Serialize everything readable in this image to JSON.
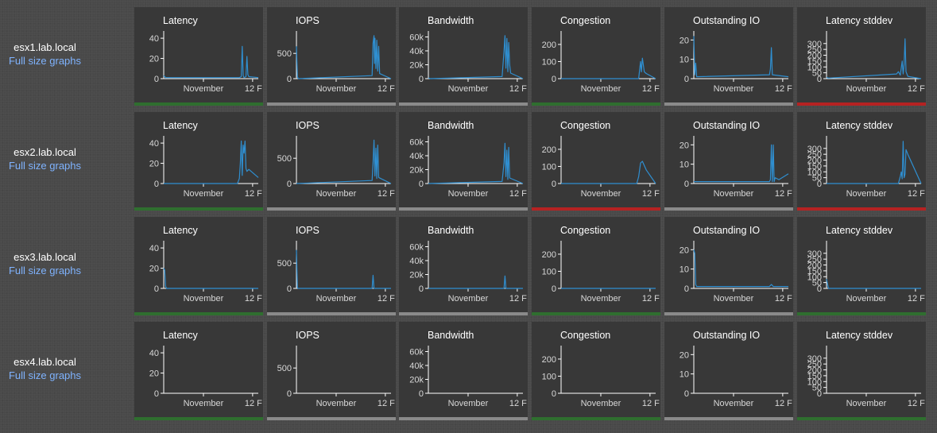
{
  "colors": {
    "line": "#2f8fd1",
    "axis": "#ffffff",
    "status_ok": "#2f6e2f",
    "status_warn": "#8a8a8a",
    "status_crit": "#b52222"
  },
  "axis_templates": {
    "Latency": {
      "ticks": [
        0,
        20,
        40
      ],
      "tick_labels": [
        "0",
        "20",
        "40"
      ],
      "ymax": 44
    },
    "IOPS": {
      "ticks": [
        0,
        500
      ],
      "tick_labels": [
        "0",
        "500"
      ],
      "ymax": 880
    },
    "Bandwidth": {
      "ticks": [
        0,
        20000,
        40000,
        60000
      ],
      "tick_labels": [
        "0",
        "20k",
        "40k",
        "60k"
      ],
      "ymax": 64000
    },
    "Congestion": {
      "ticks": [
        0,
        100,
        200
      ],
      "tick_labels": [
        "0",
        "100",
        "200"
      ],
      "ymax": 260
    },
    "Outstanding IO": {
      "ticks": [
        0,
        10,
        20
      ],
      "tick_labels": [
        "0",
        "10",
        "20"
      ],
      "ymax": 23
    },
    "Latency stddev": {
      "ticks": [
        0,
        50,
        100,
        150,
        200,
        250,
        300
      ],
      "tick_labels": [
        "0",
        "50",
        "100",
        "150",
        "200",
        "250",
        "300"
      ],
      "ymax": 380
    }
  },
  "x_axis": {
    "tick_labels": [
      "November",
      "12 F"
    ],
    "tick_positions": [
      0.42,
      0.94
    ]
  },
  "hosts": [
    {
      "name": "esx1.lab.local",
      "link": "Full size graphs",
      "graphs": [
        {
          "title": "Latency",
          "status": "status_ok",
          "chart_data": {
            "type": "line",
            "x": [
              0,
              0.02,
              0.05,
              0.8,
              0.82,
              0.83,
              0.84,
              0.85,
              0.87,
              0.88,
              0.89,
              0.9,
              1
            ],
            "y": [
              3,
              1,
              1,
              1,
              2,
              32,
              3,
              1,
              2,
              22,
              4,
              2,
              1
            ]
          }
        },
        {
          "title": "IOPS",
          "status": "status_warn",
          "chart_data": {
            "type": "line",
            "x": [
              0,
              0.01,
              0.02,
              0.8,
              0.81,
              0.82,
              0.825,
              0.83,
              0.84,
              0.85,
              0.86,
              0.87,
              0.88,
              1
            ],
            "y": [
              640,
              40,
              0,
              60,
              700,
              850,
              300,
              800,
              200,
              760,
              150,
              640,
              100,
              0
            ]
          }
        },
        {
          "title": "Bandwidth",
          "status": "status_warn",
          "chart_data": {
            "type": "line",
            "x": [
              0,
              0.02,
              0.78,
              0.8,
              0.81,
              0.82,
              0.83,
              0.84,
              0.85,
              0.86,
              0.87,
              1
            ],
            "y": [
              1000,
              0,
              3000,
              40000,
              62000,
              15000,
              58000,
              10000,
              52000,
              20000,
              8000,
              0
            ]
          }
        },
        {
          "title": "Congestion",
          "status": "status_ok",
          "chart_data": {
            "type": "line",
            "x": [
              0,
              0.82,
              0.84,
              0.85,
              0.86,
              0.87,
              0.88,
              0.9,
              1
            ],
            "y": [
              0,
              0,
              100,
              40,
              120,
              80,
              40,
              30,
              0
            ]
          }
        },
        {
          "title": "Outstanding IO",
          "status": "status_warn",
          "chart_data": {
            "type": "line",
            "x": [
              0,
              0.01,
              0.02,
              0.03,
              0.8,
              0.81,
              0.82,
              0.83,
              1
            ],
            "y": [
              22,
              2,
              8,
              1,
              2,
              5,
              16,
              2,
              1
            ]
          }
        },
        {
          "title": "Latency stddev",
          "status": "status_crit",
          "chart_data": {
            "type": "line",
            "x": [
              0,
              0.02,
              0.74,
              0.76,
              0.78,
              0.8,
              0.81,
              0.82,
              0.83,
              0.84,
              0.86,
              1
            ],
            "y": [
              10,
              5,
              40,
              60,
              30,
              150,
              40,
              120,
              340,
              60,
              20,
              0
            ]
          }
        }
      ]
    },
    {
      "name": "esx2.lab.local",
      "link": "Full size graphs",
      "graphs": [
        {
          "title": "Latency",
          "status": "status_ok",
          "chart_data": {
            "type": "line",
            "x": [
              0,
              0.78,
              0.8,
              0.81,
              0.82,
              0.83,
              0.84,
              0.85,
              0.86,
              0.87,
              0.88,
              0.9,
              1
            ],
            "y": [
              0,
              0,
              5,
              20,
              42,
              8,
              38,
              30,
              42,
              15,
              12,
              14,
              6
            ]
          }
        },
        {
          "title": "IOPS",
          "status": "status_warn",
          "chart_data": {
            "type": "line",
            "x": [
              0,
              0.8,
              0.81,
              0.82,
              0.83,
              0.84,
              0.85,
              0.86,
              0.87,
              1
            ],
            "y": [
              0,
              60,
              400,
              860,
              150,
              700,
              100,
              760,
              120,
              0
            ]
          }
        },
        {
          "title": "Bandwidth",
          "status": "status_warn",
          "chart_data": {
            "type": "line",
            "x": [
              0,
              0.78,
              0.8,
              0.81,
              0.82,
              0.83,
              0.84,
              0.85,
              0.86,
              1
            ],
            "y": [
              0,
              3000,
              30000,
              58000,
              10000,
              48000,
              6000,
              52000,
              8000,
              0
            ]
          }
        },
        {
          "title": "Congestion",
          "status": "status_crit",
          "chart_data": {
            "type": "line",
            "x": [
              0,
              0.8,
              0.82,
              0.84,
              0.86,
              0.9,
              1
            ],
            "y": [
              0,
              0,
              40,
              120,
              130,
              80,
              0
            ]
          }
        },
        {
          "title": "Outstanding IO",
          "status": "status_warn",
          "chart_data": {
            "type": "line",
            "x": [
              0,
              0.8,
              0.81,
              0.82,
              0.83,
              0.84,
              0.85,
              0.86,
              0.9,
              1
            ],
            "y": [
              1,
              1,
              2,
              20,
              1,
              20,
              1,
              3,
              2,
              5
            ]
          }
        },
        {
          "title": "Latency stddev",
          "status": "status_crit",
          "chart_data": {
            "type": "line",
            "x": [
              0,
              0.76,
              0.78,
              0.79,
              0.8,
              0.81,
              0.82,
              0.83,
              0.84,
              0.86,
              1
            ],
            "y": [
              0,
              0,
              60,
              100,
              40,
              360,
              50,
              80,
              290,
              250,
              0
            ]
          }
        }
      ]
    },
    {
      "name": "esx3.lab.local",
      "link": "Full size graphs",
      "graphs": [
        {
          "title": "Latency",
          "status": "status_ok",
          "chart_data": {
            "type": "line",
            "x": [
              0,
              0.01,
              0.02,
              0.03,
              1
            ],
            "y": [
              20,
              18,
              2,
              0,
              0
            ]
          }
        },
        {
          "title": "IOPS",
          "status": "status_warn",
          "chart_data": {
            "type": "line",
            "x": [
              0,
              0.01,
              0.02,
              0.8,
              0.81,
              0.82,
              1
            ],
            "y": [
              760,
              10,
              0,
              0,
              260,
              0,
              0
            ]
          }
        },
        {
          "title": "Bandwidth",
          "status": "status_warn",
          "chart_data": {
            "type": "line",
            "x": [
              0,
              0.8,
              0.81,
              0.82,
              1
            ],
            "y": [
              0,
              0,
              18000,
              0,
              0
            ]
          }
        },
        {
          "title": "Congestion",
          "status": "status_ok",
          "chart_data": {
            "type": "line",
            "x": [
              0,
              1
            ],
            "y": [
              0,
              0
            ]
          }
        },
        {
          "title": "Outstanding IO",
          "status": "status_warn",
          "chart_data": {
            "type": "line",
            "x": [
              0,
              0.01,
              0.02,
              0.03,
              0.8,
              0.82,
              0.84,
              1
            ],
            "y": [
              20,
              18,
              2,
              1,
              1,
              2,
              1,
              1
            ]
          }
        },
        {
          "title": "Latency stddev",
          "status": "status_ok",
          "chart_data": {
            "type": "line",
            "x": [
              0,
              0.01,
              0.02,
              1
            ],
            "y": [
              80,
              40,
              0,
              0
            ]
          }
        }
      ]
    },
    {
      "name": "esx4.lab.local",
      "link": "Full size graphs",
      "graphs": [
        {
          "title": "Latency",
          "status": "status_ok",
          "chart_data": {
            "type": "line",
            "x": [],
            "y": []
          }
        },
        {
          "title": "IOPS",
          "status": "status_warn",
          "chart_data": {
            "type": "line",
            "x": [],
            "y": []
          }
        },
        {
          "title": "Bandwidth",
          "status": "status_warn",
          "chart_data": {
            "type": "line",
            "x": [],
            "y": []
          }
        },
        {
          "title": "Congestion",
          "status": "status_ok",
          "chart_data": {
            "type": "line",
            "x": [],
            "y": []
          }
        },
        {
          "title": "Outstanding IO",
          "status": "status_warn",
          "chart_data": {
            "type": "line",
            "x": [],
            "y": []
          }
        },
        {
          "title": "Latency stddev",
          "status": "status_ok",
          "chart_data": {
            "type": "line",
            "x": [],
            "y": []
          }
        }
      ]
    }
  ]
}
